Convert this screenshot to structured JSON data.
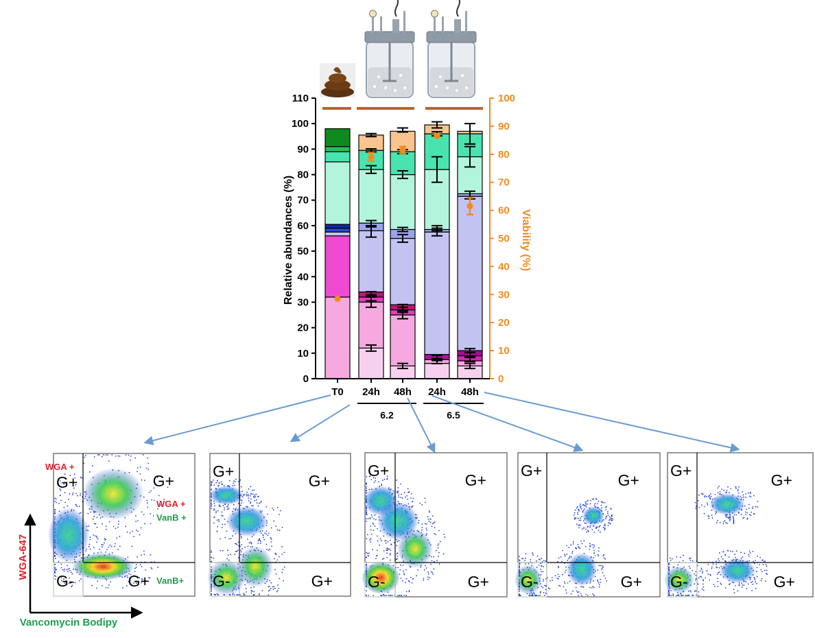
{
  "chart_data": [
    {
      "type": "bar",
      "stacked": true,
      "categories": [
        "T0",
        "24h",
        "48h",
        "24h",
        "48h"
      ],
      "groups": [
        {
          "label": "6.2",
          "categories": [
            1,
            2
          ]
        },
        {
          "label": "6.5",
          "categories": [
            3,
            4
          ]
        }
      ],
      "ylabel": "Relative abundances (%)",
      "ylim": [
        0,
        110
      ],
      "yticks": [
        0,
        10,
        20,
        30,
        40,
        50,
        60,
        70,
        80,
        90,
        100,
        110
      ],
      "y2label": "Viability (%)",
      "y2lim": [
        0,
        100
      ],
      "y2ticks": [
        0,
        10,
        20,
        30,
        40,
        50,
        60,
        70,
        80,
        90,
        100
      ],
      "colors": {
        "viability": "#f28a1e",
        "bar_outline": "#000000",
        "group_line": "#c0602c"
      },
      "stacks": [
        [
          {
            "from": 0,
            "to": 32,
            "color": "#f5a9df"
          },
          {
            "from": 32,
            "to": 56,
            "color": "#f04ad2"
          },
          {
            "from": 56,
            "to": 57.5,
            "color": "#c3c3f2"
          },
          {
            "from": 57.5,
            "to": 59,
            "color": "#2a4ad9"
          },
          {
            "from": 59,
            "to": 60.5,
            "color": "#1428a6"
          },
          {
            "from": 60.5,
            "to": 85,
            "color": "#b3f5dc"
          },
          {
            "from": 85,
            "to": 89,
            "color": "#49e3b0"
          },
          {
            "from": 89,
            "to": 91,
            "color": "#2bbc5e"
          },
          {
            "from": 91,
            "to": 98,
            "color": "#0f8a1f"
          }
        ],
        [
          {
            "from": 0,
            "to": 12,
            "color": "#f7d0ef"
          },
          {
            "from": 12,
            "to": 30,
            "color": "#f5a9df"
          },
          {
            "from": 30,
            "to": 32,
            "color": "#e43cba"
          },
          {
            "from": 32,
            "to": 34,
            "color": "#c2127a"
          },
          {
            "from": 34,
            "to": 58,
            "color": "#c3c3f2"
          },
          {
            "from": 58,
            "to": 61,
            "color": "#9ba4ec"
          },
          {
            "from": 61,
            "to": 82,
            "color": "#b3f5dc"
          },
          {
            "from": 82,
            "to": 89.5,
            "color": "#49e3b0"
          },
          {
            "from": 89.5,
            "to": 95.5,
            "color": "#f9c48e"
          }
        ],
        [
          {
            "from": 0,
            "to": 5,
            "color": "#f7d0ef"
          },
          {
            "from": 5,
            "to": 25,
            "color": "#f5a9df"
          },
          {
            "from": 25,
            "to": 27,
            "color": "#e43cba"
          },
          {
            "from": 27,
            "to": 29,
            "color": "#c2127a"
          },
          {
            "from": 29,
            "to": 55,
            "color": "#c3c3f2"
          },
          {
            "from": 55,
            "to": 58.5,
            "color": "#9ba4ec"
          },
          {
            "from": 58.5,
            "to": 80,
            "color": "#b3f5dc"
          },
          {
            "from": 80,
            "to": 89,
            "color": "#49e3b0"
          },
          {
            "from": 89,
            "to": 97,
            "color": "#f9c48e"
          }
        ],
        [
          {
            "from": 0,
            "to": 6,
            "color": "#f7d0ef"
          },
          {
            "from": 6,
            "to": 7.5,
            "color": "#f5a9df"
          },
          {
            "from": 7.5,
            "to": 9.5,
            "color": "#b0119c"
          },
          {
            "from": 9.5,
            "to": 57.5,
            "color": "#c3c3f2"
          },
          {
            "from": 57.5,
            "to": 58.5,
            "color": "#9ba4ec"
          },
          {
            "from": 58.5,
            "to": 82,
            "color": "#b3f5dc"
          },
          {
            "from": 82,
            "to": 96,
            "color": "#49e3b0"
          },
          {
            "from": 96,
            "to": 99.5,
            "color": "#f9c48e"
          }
        ],
        [
          {
            "from": 0,
            "to": 5,
            "color": "#f7d0ef"
          },
          {
            "from": 5,
            "to": 7,
            "color": "#f5a9df"
          },
          {
            "from": 7,
            "to": 9,
            "color": "#d226b8"
          },
          {
            "from": 9,
            "to": 11,
            "color": "#a40d8f"
          },
          {
            "from": 11,
            "to": 71.5,
            "color": "#c3c3f2"
          },
          {
            "from": 71.5,
            "to": 72.5,
            "color": "#9ba4ec"
          },
          {
            "from": 72.5,
            "to": 87,
            "color": "#b3f5dc"
          },
          {
            "from": 87,
            "to": 96,
            "color": "#49e3b0"
          },
          {
            "from": 96,
            "to": 97,
            "color": "#f9c48e"
          }
        ]
      ],
      "error_bars": [
        [],
        [
          {
            "y": 12,
            "e": 1.2
          },
          {
            "y": 30,
            "e": 2
          },
          {
            "y": 31.5,
            "e": 1
          },
          {
            "y": 33.5,
            "e": 0.6
          },
          {
            "y": 57.5,
            "e": 2
          },
          {
            "y": 61,
            "e": 1
          },
          {
            "y": 82,
            "e": 1.5
          },
          {
            "y": 89.5,
            "e": 0.6
          },
          {
            "y": 95.5,
            "e": 0.6
          }
        ],
        [
          {
            "y": 5,
            "e": 1
          },
          {
            "y": 25,
            "e": 1.5
          },
          {
            "y": 27,
            "e": 1
          },
          {
            "y": 28.5,
            "e": 0.6
          },
          {
            "y": 55,
            "e": 1.5
          },
          {
            "y": 58.5,
            "e": 0.8
          },
          {
            "y": 80,
            "e": 1.5
          },
          {
            "y": 89,
            "e": 0.8
          },
          {
            "y": 97.5,
            "e": 0.8
          }
        ],
        [
          {
            "y": 6.5,
            "e": 0.6
          },
          {
            "y": 8.5,
            "e": 0.6
          },
          {
            "y": 57.5,
            "e": 1.5
          },
          {
            "y": 59,
            "e": 1
          },
          {
            "y": 82,
            "e": 5
          },
          {
            "y": 96,
            "e": 0.8
          },
          {
            "y": 99.5,
            "e": 1.2
          }
        ],
        [
          {
            "y": 5,
            "e": 1
          },
          {
            "y": 7.5,
            "e": 0.8
          },
          {
            "y": 9.5,
            "e": 0.8
          },
          {
            "y": 11,
            "e": 0.8
          },
          {
            "y": 72,
            "e": 1.5
          },
          {
            "y": 87,
            "e": 4
          },
          {
            "y": 96,
            "e": 4
          }
        ]
      ],
      "viability": [
        {
          "x": "T0",
          "y": 28.5,
          "e": 0
        },
        {
          "x": "24h",
          "y": 79,
          "e": 1.5
        },
        {
          "x": "48h",
          "y": 81.5,
          "e": 1.2
        },
        {
          "x": "24h",
          "y": 86.5,
          "e": 0.5
        },
        {
          "x": "48h",
          "y": 61.5,
          "e": 3
        }
      ]
    },
    {
      "type": "scatter",
      "description_of_panels": "flow cytometry density plots, one per sample, quadrant gated",
      "xlabel": "Vancomycin Bodipy",
      "ylabel": "WGA-647",
      "panels": [
        {
          "sample": "T0",
          "gates": [
            "G+",
            "G+",
            "G-",
            "G+"
          ],
          "annotations": [
            "WGA +",
            "WGA +",
            "VanB +",
            "VanB+"
          ]
        },
        {
          "sample": "24h 6.2",
          "gates": [
            "G+",
            "G+",
            "G-",
            "G+"
          ]
        },
        {
          "sample": "48h 6.2",
          "gates": [
            "G+",
            "G+",
            "G-",
            "G+"
          ]
        },
        {
          "sample": "24h 6.5",
          "gates": [
            "G+",
            "G+",
            "G-",
            "G+"
          ]
        },
        {
          "sample": "48h 6.5",
          "gates": [
            "G+",
            "G+",
            "G-",
            "G+"
          ]
        }
      ],
      "colors": {
        "wga": "#e0202a",
        "vanb": "#1f9e4a",
        "density_low": "#1f3fd6",
        "density_high": "#e32612"
      }
    }
  ]
}
